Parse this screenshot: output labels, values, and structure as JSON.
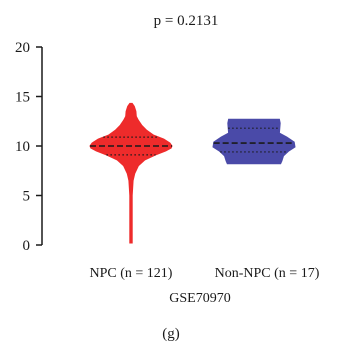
{
  "chart_data": {
    "type": "violin",
    "title": "p = 0.2131",
    "xlabel": "GSE70970",
    "ylabel": "",
    "panel_label": "(g)",
    "ylim": [
      0,
      20
    ],
    "yticks": [
      0,
      5,
      10,
      15,
      20
    ],
    "categories": [
      "NPC (n = 121)",
      "Non-NPC (n = 17)"
    ],
    "series": [
      {
        "category": "NPC (n = 121)",
        "color": "#ee2b2b",
        "min": 0.2,
        "max": 14.3,
        "q1": 9.1,
        "median": 10.0,
        "q3": 10.9,
        "profile": [
          [
            0.2,
            0.03
          ],
          [
            1,
            0.03
          ],
          [
            3,
            0.03
          ],
          [
            5,
            0.03
          ],
          [
            6.5,
            0.05
          ],
          [
            7.2,
            0.09
          ],
          [
            8,
            0.18
          ],
          [
            8.6,
            0.34
          ],
          [
            9.1,
            0.6
          ],
          [
            9.5,
            0.85
          ],
          [
            9.8,
            0.98
          ],
          [
            10,
            1.0
          ],
          [
            10.3,
            0.95
          ],
          [
            10.7,
            0.8
          ],
          [
            11.1,
            0.55
          ],
          [
            11.6,
            0.38
          ],
          [
            12.1,
            0.26
          ],
          [
            12.6,
            0.18
          ],
          [
            13.0,
            0.13
          ],
          [
            13.5,
            0.12
          ],
          [
            14.0,
            0.08
          ],
          [
            14.3,
            0.03
          ]
        ]
      },
      {
        "category": "Non-NPC (n = 17)",
        "color": "#4a4aa8",
        "min": 8.2,
        "max": 12.7,
        "q1": 9.4,
        "median": 10.3,
        "q3": 11.8,
        "profile": [
          [
            8.2,
            0.65
          ],
          [
            8.5,
            0.68
          ],
          [
            9.0,
            0.72
          ],
          [
            9.5,
            0.85
          ],
          [
            9.9,
            1.0
          ],
          [
            10.4,
            0.98
          ],
          [
            10.9,
            0.8
          ],
          [
            11.3,
            0.62
          ],
          [
            11.8,
            0.63
          ],
          [
            12.3,
            0.64
          ],
          [
            12.7,
            0.62
          ]
        ]
      }
    ]
  }
}
